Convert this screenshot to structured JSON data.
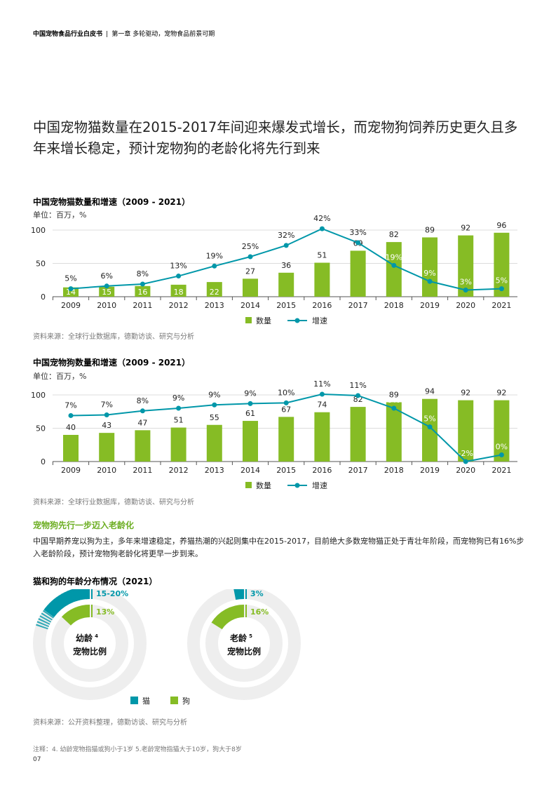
{
  "header": {
    "report": "中国宠物食品行业白皮书",
    "separator": "|",
    "chapter": "第一章 多轮驱动，宠物食品前景可期"
  },
  "main_title": "中国宠物猫数量在2015-2017年间迎来爆发式增长，而宠物狗饲养历史更久且多年来增长稳定，预计宠物狗的老龄化将先行到来",
  "colors": {
    "bar": "#86bc25",
    "line": "#0097a9",
    "cat_ring": "#0097a9",
    "dog_ring": "#86bc25",
    "track": "#eeeeee",
    "heading_green": "#6cae22"
  },
  "cat_chart": {
    "title": "中国宠物猫数量和增速（2009 - 2021）",
    "unit": "单位：百万，%",
    "source": "资料来源：全球行业数据库，德勤访谈、研究与分析",
    "chart_data": {
      "type": "bar",
      "categories": [
        "2009",
        "2010",
        "2011",
        "2012",
        "2013",
        "2014",
        "2015",
        "2016",
        "2017",
        "2018",
        "2019",
        "2020",
        "2021"
      ],
      "series": [
        {
          "name": "数量",
          "kind": "bar",
          "values": [
            14,
            15,
            16,
            18,
            22,
            27,
            36,
            51,
            69,
            82,
            89,
            92,
            96
          ],
          "labels": [
            "14",
            "15",
            "16",
            "18",
            "22",
            "27",
            "36",
            "51",
            "69",
            "82",
            "89",
            "92",
            "96"
          ]
        },
        {
          "name": "增速",
          "kind": "line",
          "values": [
            12,
            16,
            19,
            31,
            46,
            60,
            77,
            102,
            81,
            47,
            23,
            10,
            12
          ],
          "labels": [
            "5%",
            "6%",
            "8%",
            "13%",
            "19%",
            "25%",
            "32%",
            "42%",
            "33%",
            "19%",
            "9%",
            "3%",
            "5%"
          ]
        }
      ],
      "yticks": [
        "0",
        "50",
        "100"
      ],
      "ylim": [
        0,
        100
      ]
    }
  },
  "dog_chart": {
    "title": "中国宠物狗数量和增速（2009 - 2021）",
    "unit": "单位：百万，%",
    "source": "资料来源：全球行业数据库，德勤访谈、研究与分析",
    "chart_data": {
      "type": "bar",
      "categories": [
        "2009",
        "2010",
        "2011",
        "2012",
        "2013",
        "2014",
        "2015",
        "2016",
        "2017",
        "2018",
        "2019",
        "2020",
        "2021"
      ],
      "series": [
        {
          "name": "数量",
          "kind": "bar",
          "values": [
            40,
            43,
            47,
            51,
            55,
            61,
            67,
            74,
            82,
            89,
            94,
            92,
            92
          ],
          "labels": [
            "40",
            "43",
            "47",
            "51",
            "55",
            "61",
            "67",
            "74",
            "82",
            "89",
            "94",
            "92",
            "92"
          ]
        },
        {
          "name": "增速",
          "kind": "line",
          "values": [
            69,
            70,
            76,
            80,
            85,
            87,
            88,
            101,
            99,
            80,
            52,
            0,
            10
          ],
          "labels": [
            "7%",
            "7%",
            "8%",
            "9%",
            "9%",
            "9%",
            "10%",
            "11%",
            "11%",
            "9%",
            "5%",
            "-2%",
            "0%"
          ]
        }
      ],
      "yticks": [
        "0",
        "50",
        "100"
      ],
      "ylim": [
        0,
        100
      ]
    }
  },
  "section": {
    "title": "宠物狗先行一步迈入老龄化",
    "paragraph": "中国早期养宠以狗为主，多年来增速稳定，养猫热潮的兴起则集中在2015-2017，目前绝大多数宠物猫正处于青壮年阶段，而宠物狗已有16%步入老龄阶段，预计宠物狗老龄化将更早一步到来。"
  },
  "age_chart": {
    "title": "猫和狗的年龄分布情况（2021）",
    "chart_data": {
      "type": "pie",
      "groups": [
        {
          "name_line1": "幼龄",
          "sup": "4",
          "name_line2": "宠物比例",
          "cat_label": "15-20%",
          "cat_value": 15,
          "cat_value_high": 20,
          "dog_label": "13%",
          "dog_value": 13
        },
        {
          "name_line1": "老龄",
          "sup": "5",
          "name_line2": "宠物比例",
          "cat_label": "3%",
          "cat_value": 3,
          "dog_label": "16%",
          "dog_value": 16
        }
      ],
      "legend": [
        "猫",
        "狗"
      ]
    },
    "source": "资料来源：公开资料整理，德勤访谈、研究与分析"
  },
  "notes": "注释：4. 幼龄宠物指猫或狗小于1岁 5.老龄宠物指猫大于10岁，狗大于8岁",
  "page_number": "07"
}
